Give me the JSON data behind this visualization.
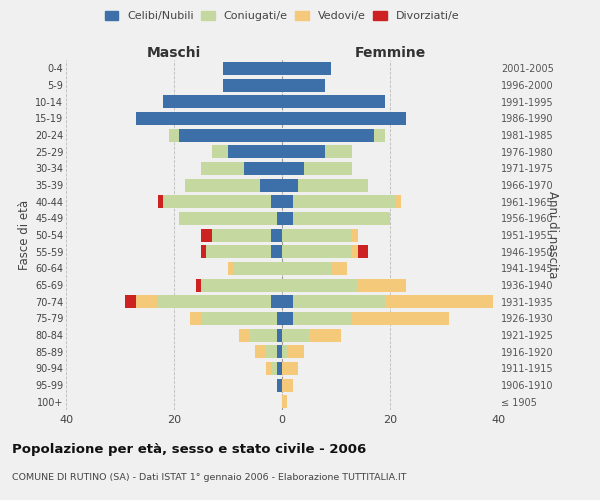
{
  "age_groups": [
    "100+",
    "95-99",
    "90-94",
    "85-89",
    "80-84",
    "75-79",
    "70-74",
    "65-69",
    "60-64",
    "55-59",
    "50-54",
    "45-49",
    "40-44",
    "35-39",
    "30-34",
    "25-29",
    "20-24",
    "15-19",
    "10-14",
    "5-9",
    "0-4"
  ],
  "birth_years": [
    "≤ 1905",
    "1906-1910",
    "1911-1915",
    "1916-1920",
    "1921-1925",
    "1926-1930",
    "1931-1935",
    "1936-1940",
    "1941-1945",
    "1946-1950",
    "1951-1955",
    "1956-1960",
    "1961-1965",
    "1966-1970",
    "1971-1975",
    "1976-1980",
    "1981-1985",
    "1986-1990",
    "1991-1995",
    "1996-2000",
    "2001-2005"
  ],
  "maschi": {
    "celibi": [
      0,
      1,
      1,
      1,
      1,
      1,
      2,
      0,
      0,
      2,
      2,
      1,
      2,
      4,
      7,
      10,
      19,
      27,
      22,
      11,
      11
    ],
    "coniugati": [
      0,
      0,
      1,
      2,
      5,
      14,
      21,
      15,
      9,
      12,
      11,
      18,
      20,
      14,
      8,
      3,
      2,
      0,
      0,
      0,
      0
    ],
    "vedovi": [
      0,
      0,
      1,
      2,
      2,
      2,
      4,
      0,
      1,
      0,
      0,
      0,
      0,
      0,
      0,
      0,
      0,
      0,
      0,
      0,
      0
    ],
    "divorziati": [
      0,
      0,
      0,
      0,
      0,
      0,
      2,
      1,
      0,
      1,
      2,
      0,
      1,
      0,
      0,
      0,
      0,
      0,
      0,
      0,
      0
    ]
  },
  "femmine": {
    "nubili": [
      0,
      0,
      0,
      0,
      0,
      2,
      2,
      0,
      0,
      0,
      0,
      2,
      2,
      3,
      4,
      8,
      17,
      23,
      19,
      8,
      9
    ],
    "coniugate": [
      0,
      0,
      0,
      1,
      5,
      11,
      17,
      14,
      9,
      13,
      13,
      18,
      19,
      13,
      9,
      5,
      2,
      0,
      0,
      0,
      0
    ],
    "vedove": [
      1,
      2,
      3,
      3,
      6,
      18,
      20,
      9,
      3,
      1,
      1,
      0,
      1,
      0,
      0,
      0,
      0,
      0,
      0,
      0,
      0
    ],
    "divorziate": [
      0,
      0,
      0,
      0,
      0,
      0,
      0,
      0,
      0,
      2,
      0,
      0,
      0,
      0,
      0,
      0,
      0,
      0,
      0,
      0,
      0
    ]
  },
  "colors": {
    "celibi": "#3d6fa8",
    "coniugati": "#c5d8a0",
    "vedovi": "#f5c97a",
    "divorziati": "#cc2222"
  },
  "xlim": 40,
  "title": "Popolazione per età, sesso e stato civile - 2006",
  "subtitle": "COMUNE DI RUTINO (SA) - Dati ISTAT 1° gennaio 2006 - Elaborazione TUTTITALIA.IT",
  "ylabel_left": "Fasce di età",
  "ylabel_right": "Anni di nascita",
  "xlabel_left": "Maschi",
  "xlabel_right": "Femmine",
  "legend_labels": [
    "Celibi/Nubili",
    "Coniugati/e",
    "Vedovi/e",
    "Divorziati/e"
  ],
  "bg_color": "#f0f0f0"
}
